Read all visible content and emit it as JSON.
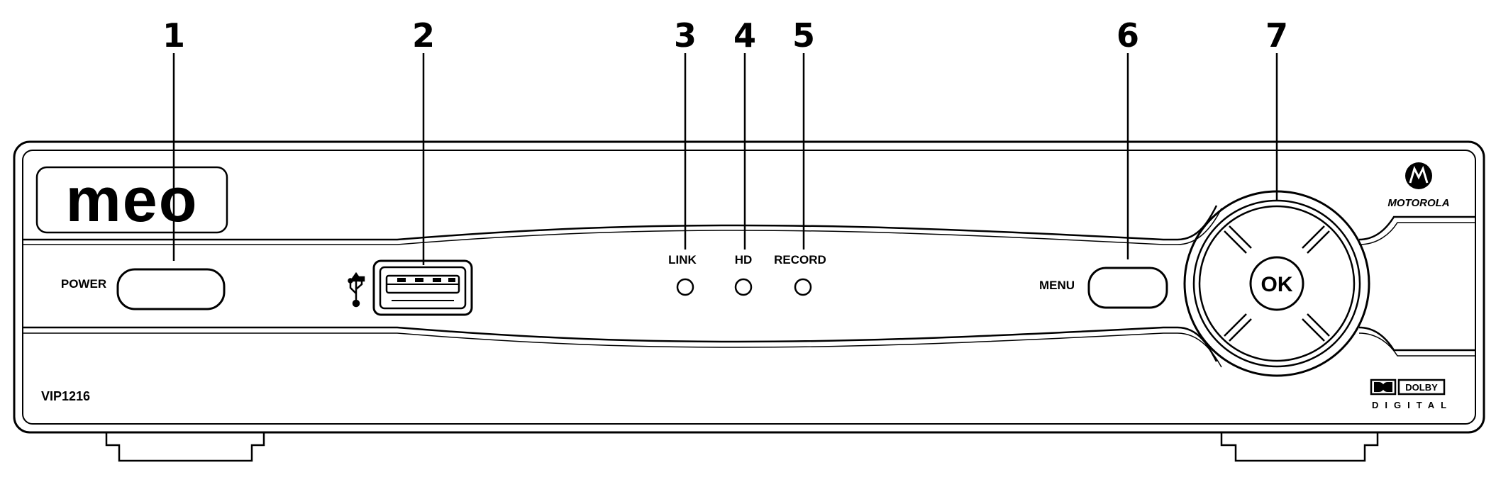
{
  "callouts": [
    "1",
    "2",
    "3",
    "4",
    "5",
    "6",
    "7"
  ],
  "brand_logo": "meo",
  "manufacturer": "MOTOROLA",
  "model": "VIP1216",
  "labels": {
    "power": "POWER",
    "menu": "MENU",
    "link": "LINK",
    "hd": "HD",
    "record": "RECORD",
    "ok": "OK"
  },
  "dolby": {
    "top": "DOLBY",
    "bottom": "DIGITAL"
  },
  "icons": [
    "usb-icon",
    "motorola-logo-icon",
    "dolby-logo-icon"
  ]
}
